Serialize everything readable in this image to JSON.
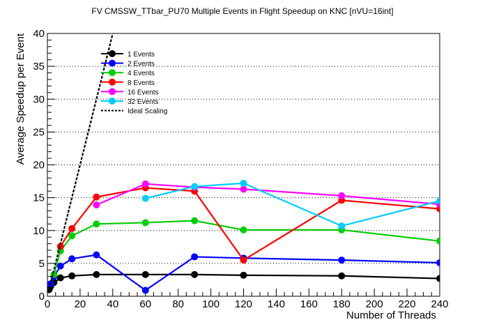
{
  "chart_data": {
    "type": "line",
    "title": "FV CMSSW_TTbar_PU70 Multiple Events in Flight Speedup on KNC [nVU=16int]",
    "xlabel": "Number of Threads",
    "ylabel": "Average Speedup per Event",
    "xlim": [
      0,
      240
    ],
    "ylim": [
      0,
      40
    ],
    "xticks": [
      0,
      20,
      40,
      60,
      80,
      100,
      120,
      140,
      160,
      180,
      200,
      220,
      240
    ],
    "yticks": [
      0,
      5,
      10,
      15,
      20,
      25,
      30,
      35,
      40
    ],
    "grid": "horizontal dotted",
    "legend_position": "top-left",
    "series": [
      {
        "name": "1 Events",
        "color": "#000000",
        "x": [
          1,
          2,
          4,
          8,
          15,
          30,
          60,
          90,
          120,
          180,
          240
        ],
        "y": [
          1.0,
          1.5,
          2.1,
          2.8,
          3.1,
          3.3,
          3.3,
          3.3,
          3.2,
          3.1,
          2.7
        ]
      },
      {
        "name": "2 Events",
        "color": "#0000ff",
        "x": [
          2,
          4,
          8,
          15,
          30,
          60,
          90,
          120,
          180,
          240
        ],
        "y": [
          1.9,
          3.0,
          4.6,
          5.7,
          6.3,
          0.9,
          6.0,
          5.8,
          5.5,
          5.1
        ]
      },
      {
        "name": "4 Events",
        "color": "#00cc00",
        "x": [
          4,
          8,
          15,
          30,
          60,
          90,
          120,
          180,
          240
        ],
        "y": [
          3.3,
          6.9,
          9.2,
          11.0,
          11.2,
          11.5,
          10.1,
          10.1,
          8.4
        ]
      },
      {
        "name": "8 Events",
        "color": "#ff0000",
        "x": [
          8,
          15,
          30,
          60,
          90,
          120,
          180,
          240
        ],
        "y": [
          7.6,
          10.3,
          15.1,
          16.5,
          16.0,
          5.5,
          14.6,
          13.3
        ]
      },
      {
        "name": "16 Events",
        "color": "#ff00ff",
        "x": [
          30,
          60,
          90,
          120,
          180,
          240
        ],
        "y": [
          13.9,
          17.1,
          16.6,
          16.3,
          15.3,
          14.0
        ]
      },
      {
        "name": "32 Events",
        "color": "#00ccff",
        "x": [
          60,
          90,
          120,
          180,
          240
        ],
        "y": [
          14.9,
          16.7,
          17.2,
          10.7,
          14.5
        ]
      },
      {
        "name": "Ideal Scaling",
        "color": "#000000",
        "style": "dashed",
        "x": [
          1,
          40
        ],
        "y": [
          1,
          40
        ]
      }
    ]
  }
}
